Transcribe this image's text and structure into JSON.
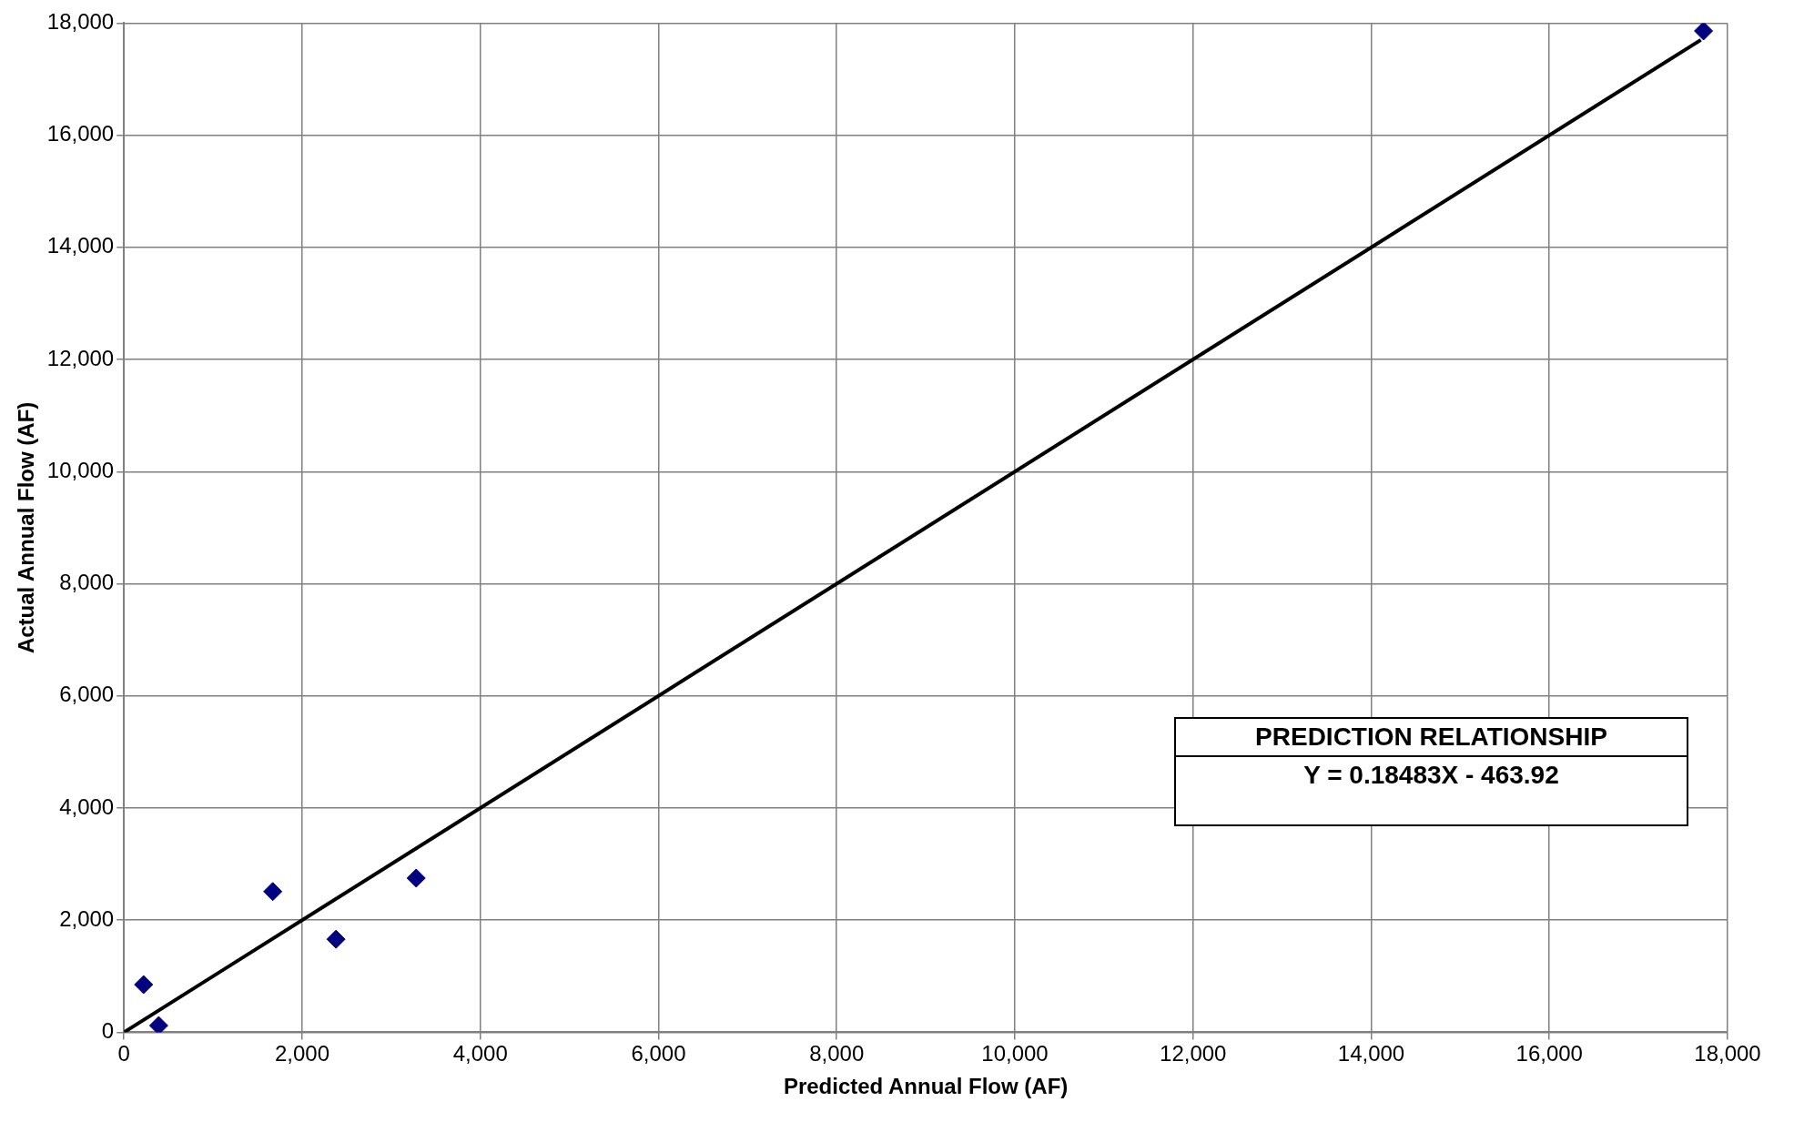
{
  "chart_data": {
    "type": "scatter",
    "xlabel": "Predicted Annual Flow (AF)",
    "ylabel": "Actual Annual Flow (AF)",
    "annotations": [
      "PREDICTION RELATIONSHIP",
      "Y = 0.18483X - 463.92"
    ],
    "series": [
      {
        "color": "#000080",
        "marker": "diamond",
        "x": [
          220,
          390,
          1670,
          2380,
          3280,
          17730
        ],
        "values": [
          850,
          120,
          2510,
          1660,
          2750,
          17860
        ]
      },
      {
        "type": "line",
        "color": "#000000",
        "marker": "none",
        "x": [
          0,
          17700
        ],
        "values": [
          0,
          17700
        ]
      }
    ],
    "xlim": [
      0,
      18000
    ],
    "xticks": [
      0,
      {
        "value": 2000,
        "label": "2,000"
      },
      {
        "value": 4000,
        "label": "4,000"
      },
      {
        "value": 6000,
        "label": "6,000"
      },
      {
        "value": 8000,
        "label": "8,000"
      },
      {
        "value": 10000,
        "label": "10,000"
      },
      {
        "value": 12000,
        "label": "12,000"
      },
      {
        "value": 14000,
        "label": "14,000"
      },
      {
        "value": 16000,
        "label": "16,000"
      },
      {
        "value": 18000,
        "label": "18,000"
      }
    ],
    "ylim": [
      0,
      18000
    ],
    "yticks": [
      0,
      {
        "value": 2000,
        "label": "2,000"
      },
      {
        "value": 4000,
        "label": "4,000"
      },
      {
        "value": 6000,
        "label": "6,000"
      },
      {
        "value": 8000,
        "label": "8,000"
      },
      {
        "value": 10000,
        "label": "10,000"
      },
      {
        "value": 12000,
        "label": "12,000"
      },
      {
        "value": 14000,
        "label": "14,000"
      },
      {
        "value": 16000,
        "label": "16,000"
      },
      {
        "value": 18000,
        "label": "18,000"
      }
    ],
    "grid": true,
    "legend": false,
    "line_style": "solid"
  }
}
